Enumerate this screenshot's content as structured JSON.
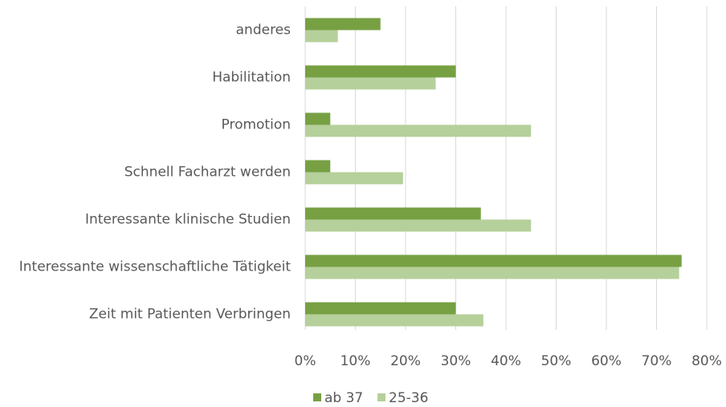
{
  "chart_data": {
    "type": "barh",
    "categories": [
      "anderes",
      "Habilitation",
      "Promotion",
      "Schnell Facharzt werden",
      "Interessante klinische Studien",
      "Interessante wissenschaftliche Tätigkeit",
      "Zeit mit Patienten Verbringen"
    ],
    "series": [
      {
        "name": "ab 37",
        "color": "#77a043",
        "values": [
          15,
          30,
          5,
          5,
          35,
          75,
          30
        ]
      },
      {
        "name": "25-36",
        "color": "#b5d09a",
        "values": [
          6.5,
          26,
          45,
          19.5,
          45,
          74.5,
          35.5
        ]
      }
    ],
    "xlim": [
      0,
      80
    ],
    "xticks": [
      {
        "value": 0,
        "label": "0%"
      },
      {
        "value": 10,
        "label": "10%"
      },
      {
        "value": 20,
        "label": "20%"
      },
      {
        "value": 30,
        "label": "30%"
      },
      {
        "value": 40,
        "label": "40%"
      },
      {
        "value": 50,
        "label": "50%"
      },
      {
        "value": 60,
        "label": "60%"
      },
      {
        "value": 70,
        "label": "70%"
      },
      {
        "value": 80,
        "label": "80%"
      }
    ],
    "grid": true,
    "legend": "bottom"
  }
}
